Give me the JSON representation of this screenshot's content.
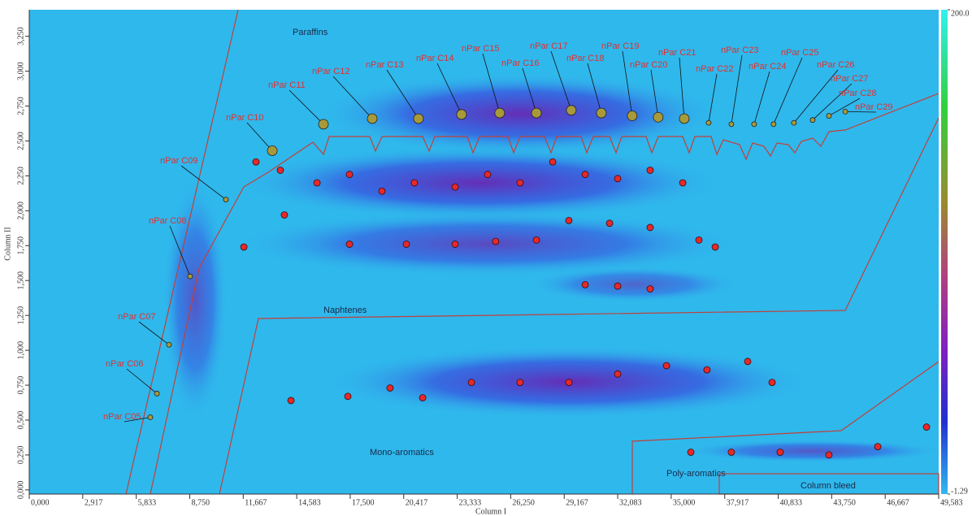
{
  "chart_data": {
    "type": "scatter",
    "x_label": "Column I",
    "y_label": "Column II",
    "xlim": [
      0,
      49.583
    ],
    "ylim": [
      -0.03,
      3.44
    ],
    "xticks": [
      {
        "value": 0,
        "label": "0,000"
      },
      {
        "value": 2.917,
        "label": "2,917"
      },
      {
        "value": 5.833,
        "label": "5,833"
      },
      {
        "value": 8.75,
        "label": "8,750"
      },
      {
        "value": 11.667,
        "label": "11,667"
      },
      {
        "value": 14.583,
        "label": "14,583"
      },
      {
        "value": 17.5,
        "label": "17,500"
      },
      {
        "value": 20.417,
        "label": "20,417"
      },
      {
        "value": 23.333,
        "label": "23,333"
      },
      {
        "value": 26.25,
        "label": "26,250"
      },
      {
        "value": 29.167,
        "label": "29,167"
      },
      {
        "value": 32.083,
        "label": "32,083"
      },
      {
        "value": 35,
        "label": "35,000"
      },
      {
        "value": 37.917,
        "label": "37,917"
      },
      {
        "value": 40.833,
        "label": "40,833"
      },
      {
        "value": 43.75,
        "label": "43,750"
      },
      {
        "value": 46.667,
        "label": "46,667"
      },
      {
        "value": 49.583,
        "label": "49,583"
      }
    ],
    "yticks": [
      {
        "value": 0,
        "label": "0,000"
      },
      {
        "value": 0.25,
        "label": "0,250"
      },
      {
        "value": 0.5,
        "label": "0,500"
      },
      {
        "value": 0.75,
        "label": "0,750"
      },
      {
        "value": 1,
        "label": "1,000"
      },
      {
        "value": 1.25,
        "label": "1,250"
      },
      {
        "value": 1.5,
        "label": "1,500"
      },
      {
        "value": 1.75,
        "label": "1,750"
      },
      {
        "value": 2,
        "label": "2,000"
      },
      {
        "value": 2.25,
        "label": "2,250"
      },
      {
        "value": 2.5,
        "label": "2,500"
      },
      {
        "value": 2.75,
        "label": "2,750"
      },
      {
        "value": 3,
        "label": "3,000"
      },
      {
        "value": 3.25,
        "label": "3,250"
      }
    ],
    "zlim": [
      -1.29,
      200
    ],
    "zticks": [
      -1.29,
      {
        "value": 200,
        "label": "200.0"
      }
    ],
    "regions": [
      "Paraffins",
      "Naphtenes",
      "Mono-aromatics",
      "Poly-aromatics",
      "Column bleed"
    ],
    "peaks": {
      "color": "#a89a3a",
      "labels": [
        "nPar C05",
        "nPar C06",
        "nPar C07",
        "nPar C08",
        "nPar C09",
        "nPar C10",
        "nPar C11",
        "nPar C12",
        "nPar C13",
        "nPar C14",
        "nPar C15",
        "nPar C16",
        "nPar C17",
        "nPar C18",
        "nPar C19",
        "nPar C20",
        "nPar C21",
        "nPar C22",
        "nPar C23",
        "nPar C24",
        "nPar C25",
        "nPar C26",
        "nPar C27",
        "nPar C28",
        "nPar C29"
      ],
      "x": [
        6.6,
        6.96,
        7.62,
        8.77,
        10.72,
        13.25,
        16.04,
        18.7,
        21.22,
        23.57,
        25.65,
        27.65,
        29.55,
        31.19,
        32.87,
        34.29,
        35.71,
        37.04,
        38.28,
        39.52,
        40.58,
        41.69,
        42.71,
        43.6,
        44.49
      ],
      "values": [
        0.52,
        0.69,
        1.04,
        1.53,
        2.08,
        2.43,
        2.62,
        2.66,
        2.66,
        2.69,
        2.7,
        2.7,
        2.72,
        2.7,
        2.68,
        2.67,
        2.66,
        2.63,
        2.62,
        2.62,
        2.62,
        2.63,
        2.65,
        2.68,
        2.71
      ]
    },
    "other_peaks": {
      "color": "#e8282a",
      "x": [
        12.36,
        13.69,
        15.69,
        17.46,
        19.23,
        21.0,
        23.22,
        24.99,
        26.76,
        28.54,
        30.31,
        32.08,
        33.85,
        35.63,
        11.7,
        13.91,
        17.46,
        20.56,
        23.22,
        25.43,
        27.65,
        29.42,
        31.64,
        33.85,
        36.51,
        37.4,
        30.31,
        32.08,
        33.85,
        14.27,
        17.37,
        19.67,
        21.45,
        24.11,
        26.76,
        29.42,
        32.08,
        34.74,
        36.95,
        39.17,
        40.5,
        36.07,
        38.28,
        40.94,
        43.6,
        46.26,
        48.92
      ],
      "values": [
        2.35,
        2.29,
        2.2,
        2.26,
        2.14,
        2.2,
        2.17,
        2.26,
        2.2,
        2.35,
        2.26,
        2.23,
        2.29,
        2.2,
        1.74,
        1.97,
        1.76,
        1.76,
        1.76,
        1.78,
        1.79,
        1.93,
        1.91,
        1.88,
        1.79,
        1.74,
        1.47,
        1.46,
        1.44,
        0.64,
        0.67,
        0.73,
        0.66,
        0.77,
        0.77,
        0.77,
        0.83,
        0.89,
        0.86,
        0.92,
        0.77,
        0.27,
        0.27,
        0.27,
        0.25,
        0.31,
        0.45
      ]
    }
  }
}
